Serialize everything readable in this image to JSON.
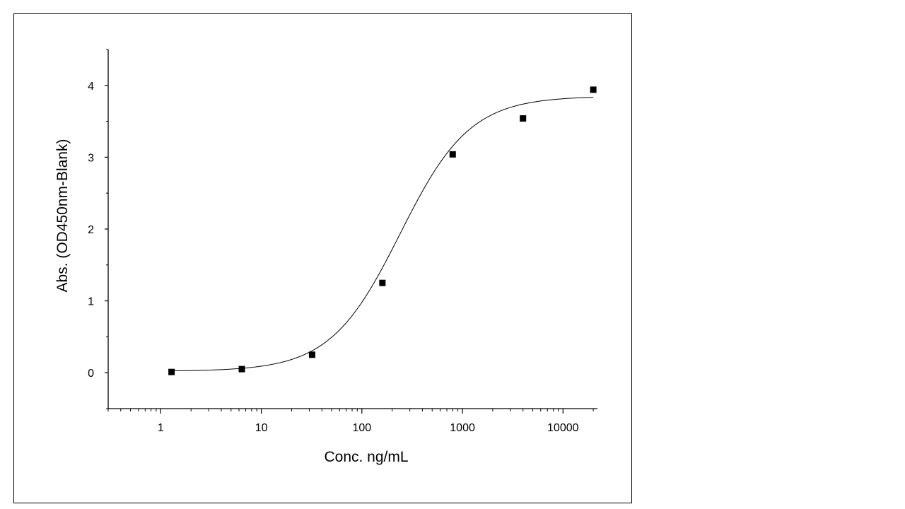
{
  "chart_data": {
    "type": "scatter",
    "title": "",
    "xlabel": "Conc. ng/mL",
    "ylabel": "Abs. (OD450nm-Blank)",
    "x_scale": "log",
    "xlim": [
      0.3,
      22000
    ],
    "ylim": [
      -0.5,
      4.5
    ],
    "x_ticks": [
      1,
      10,
      100,
      1000,
      10000
    ],
    "x_tick_labels": [
      "1",
      "10",
      "100",
      "1000",
      "10000"
    ],
    "y_ticks": [
      0,
      1,
      2,
      3,
      4
    ],
    "y_tick_labels": [
      "0",
      "1",
      "2",
      "3",
      "4"
    ],
    "grid": false,
    "legend": "none",
    "series": [
      {
        "marker": "square",
        "color": "#000000",
        "x": [
          1.28,
          6.4,
          32,
          160,
          800,
          4000,
          20000
        ],
        "y": [
          0.01,
          0.05,
          0.25,
          1.25,
          3.04,
          3.54,
          3.94
        ]
      }
    ],
    "fit_curve": {
      "model": "4PL",
      "color": "#000000",
      "bottom": 0.02,
      "top": 3.85,
      "ec50": 240,
      "hill": 1.25
    }
  }
}
